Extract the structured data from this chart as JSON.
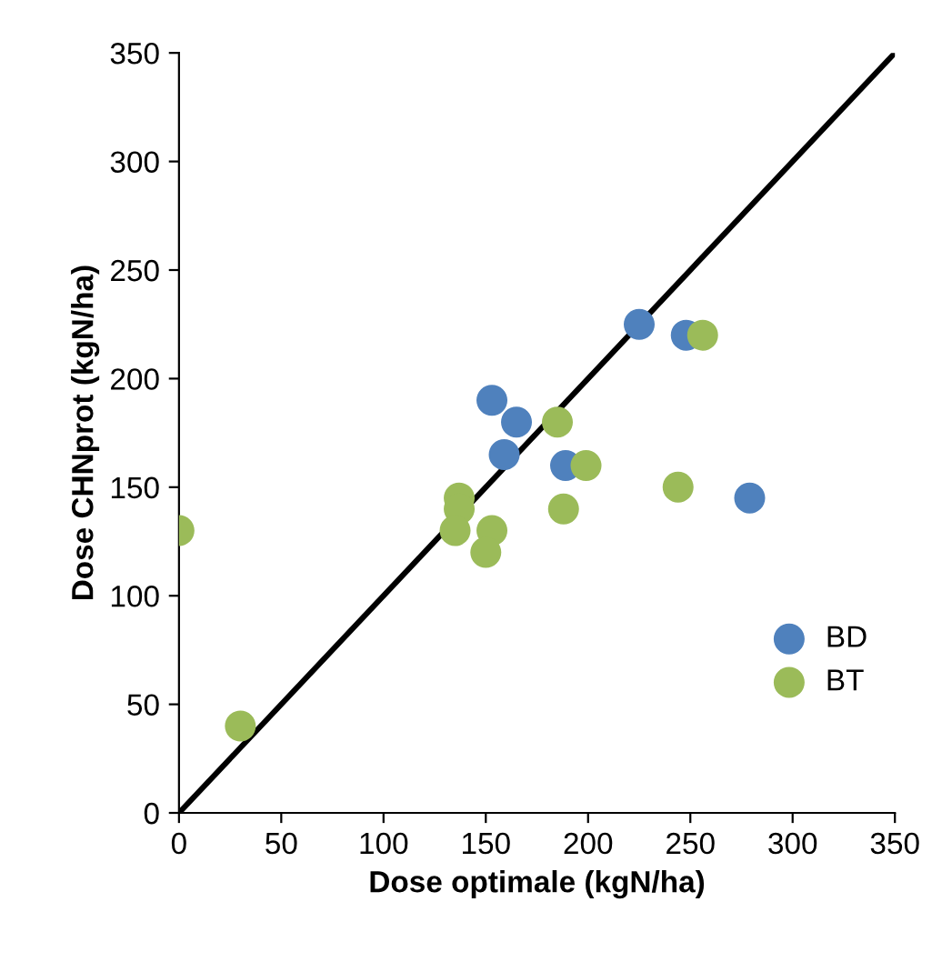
{
  "chart_data": {
    "type": "scatter",
    "xlabel": "Dose optimale (kgN/ha)",
    "ylabel": "Dose CHNprot (kgN/ha)",
    "xlim": [
      0,
      350
    ],
    "ylim": [
      0,
      350
    ],
    "xticks": [
      0,
      50,
      100,
      150,
      200,
      250,
      300,
      350
    ],
    "yticks": [
      0,
      50,
      100,
      150,
      200,
      250,
      300,
      350
    ],
    "grid": false,
    "legend": "right",
    "series": [
      {
        "name": "BD",
        "marker": "circle",
        "color": "#4f81bd",
        "x": [
          225,
          248,
          153,
          165,
          159,
          189,
          279
        ],
        "values": [
          225,
          220,
          190,
          180,
          165,
          160,
          145
        ]
      },
      {
        "name": "BT",
        "marker": "circle",
        "color": "#9bbb59",
        "x": [
          256,
          185,
          199,
          188,
          244,
          0,
          30,
          137,
          137,
          135,
          153,
          150
        ],
        "values": [
          220,
          180,
          160,
          140,
          150,
          130,
          40,
          145,
          140,
          130,
          130,
          120
        ]
      },
      {
        "type": "line",
        "marker": "none",
        "color": "#000000",
        "x": [
          0,
          350
        ],
        "values": [
          0,
          350
        ]
      }
    ]
  }
}
